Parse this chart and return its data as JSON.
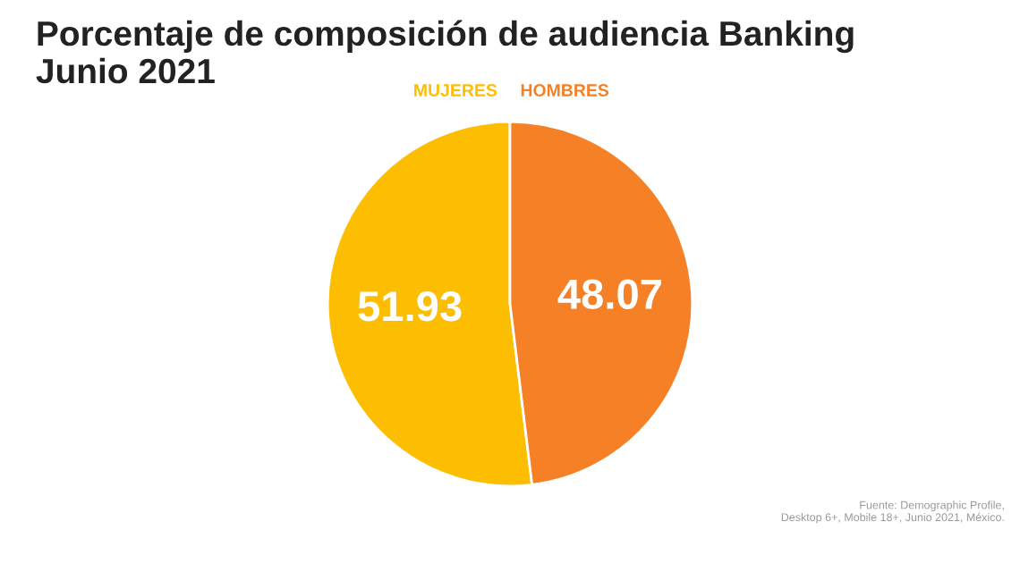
{
  "chart_data": {
    "type": "pie",
    "title": "Porcentaje de composición de audiencia Banking\nJunio 2021",
    "categories": [
      "MUJERES",
      "HOMBRES"
    ],
    "values": [
      51.93,
      48.07
    ],
    "colors": [
      "#fdbd00",
      "#f58025"
    ],
    "data_labels": true,
    "annotations": [
      "Fuente: Demographic Profile,\nDesktop 6+, Mobile 18+, Junio 2021, México."
    ]
  }
}
